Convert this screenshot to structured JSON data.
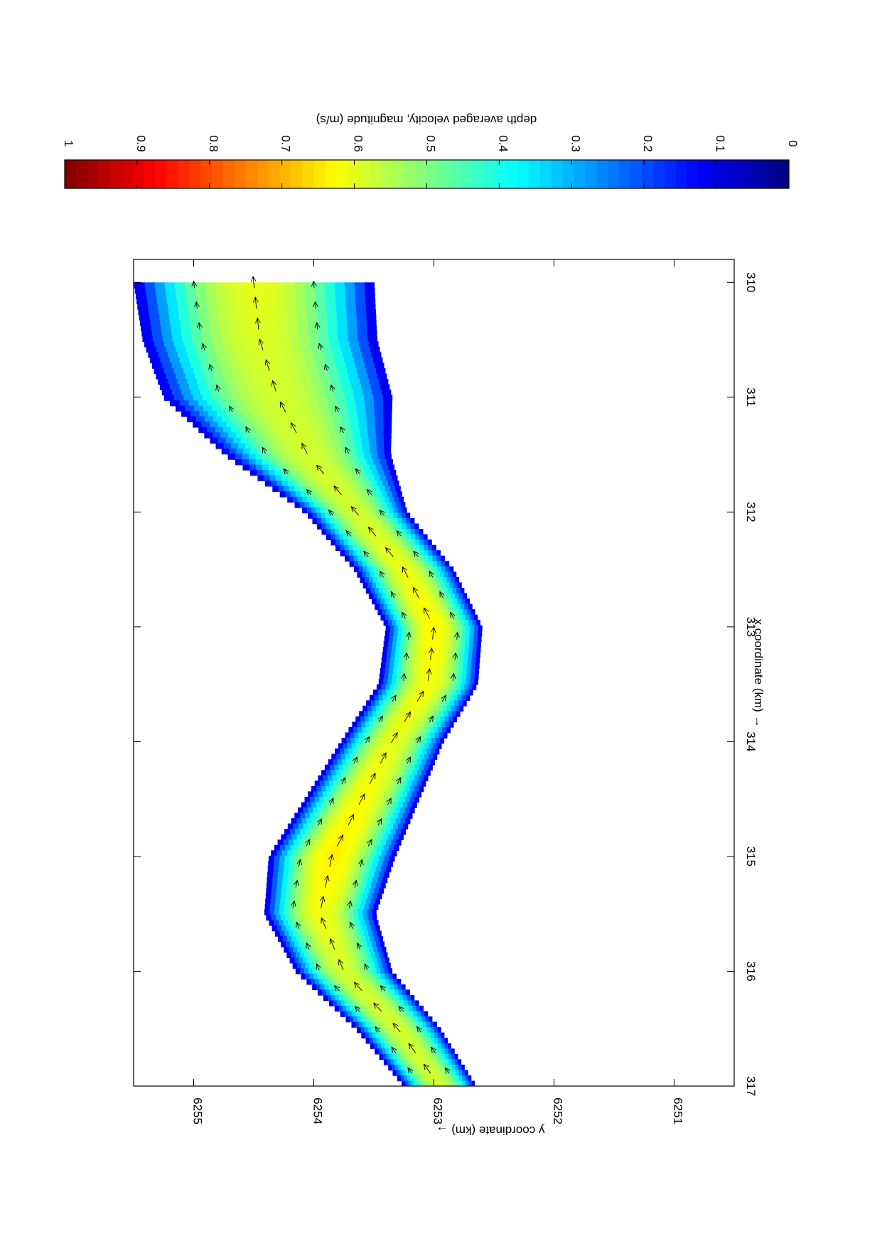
{
  "chart_data": [
    {
      "type": "heatmap",
      "title": "",
      "xlabel": "x coordinate (km) →",
      "ylabel": "y coordinate (km) →",
      "xlim": [
        309.8,
        317
      ],
      "ylim": [
        6250.5,
        6255.5
      ],
      "xticks": [
        "310",
        "311",
        "312",
        "313",
        "314",
        "315",
        "316",
        "317"
      ],
      "yticks": [
        "6251",
        "6252",
        "6253",
        "6254",
        "6255"
      ],
      "grid": false,
      "orientation": "rotated 90 degrees clockwise on page",
      "field": "depth averaged velocity magnitude along a meandering river channel, flowing from x=317 toward x=310",
      "channel_centerline": [
        {
          "x": 310.0,
          "y": 6254.5
        },
        {
          "x": 310.5,
          "y": 6254.45
        },
        {
          "x": 311.0,
          "y": 6254.3
        },
        {
          "x": 311.5,
          "y": 6254.05
        },
        {
          "x": 312.0,
          "y": 6253.65
        },
        {
          "x": 312.5,
          "y": 6253.25
        },
        {
          "x": 313.0,
          "y": 6253.0
        },
        {
          "x": 313.5,
          "y": 6253.05
        },
        {
          "x": 314.0,
          "y": 6253.35
        },
        {
          "x": 314.5,
          "y": 6253.6
        },
        {
          "x": 315.0,
          "y": 6253.85
        },
        {
          "x": 315.5,
          "y": 6253.95
        },
        {
          "x": 316.0,
          "y": 6253.75
        },
        {
          "x": 316.5,
          "y": 6253.3
        },
        {
          "x": 317.0,
          "y": 6252.95
        }
      ],
      "channel_width_km": [
        {
          "x": 310.0,
          "w": 2.0
        },
        {
          "x": 311.0,
          "w": 1.9
        },
        {
          "x": 312.0,
          "w": 0.85
        },
        {
          "x": 313.0,
          "w": 0.8
        },
        {
          "x": 314.0,
          "w": 0.85
        },
        {
          "x": 315.0,
          "w": 1.05
        },
        {
          "x": 316.0,
          "w": 0.8
        },
        {
          "x": 317.0,
          "w": 0.6
        }
      ],
      "core_velocity_ms": [
        {
          "x": 310.0,
          "v": 0.6
        },
        {
          "x": 311.0,
          "v": 0.58
        },
        {
          "x": 312.0,
          "v": 0.58
        },
        {
          "x": 313.0,
          "v": 0.63
        },
        {
          "x": 314.0,
          "v": 0.6
        },
        {
          "x": 315.0,
          "v": 0.64
        },
        {
          "x": 316.0,
          "v": 0.58
        },
        {
          "x": 317.0,
          "v": 0.58
        }
      ],
      "velocity_vectors": "arrows along channel pointing downstream (toward decreasing x)"
    },
    {
      "type": "colorbar",
      "label": "depth averaged velocity, magnitude (m/s)",
      "range": [
        0,
        1
      ],
      "ticks": [
        "0",
        "0.1",
        "0.2",
        "0.3",
        "0.4",
        "0.5",
        "0.6",
        "0.7",
        "0.8",
        "0.9",
        "1"
      ],
      "colormap": "jet",
      "colors": [
        "#00008f",
        "#0000ff",
        "#00ffff",
        "#ffff00",
        "#ff0000",
        "#800000"
      ]
    }
  ]
}
